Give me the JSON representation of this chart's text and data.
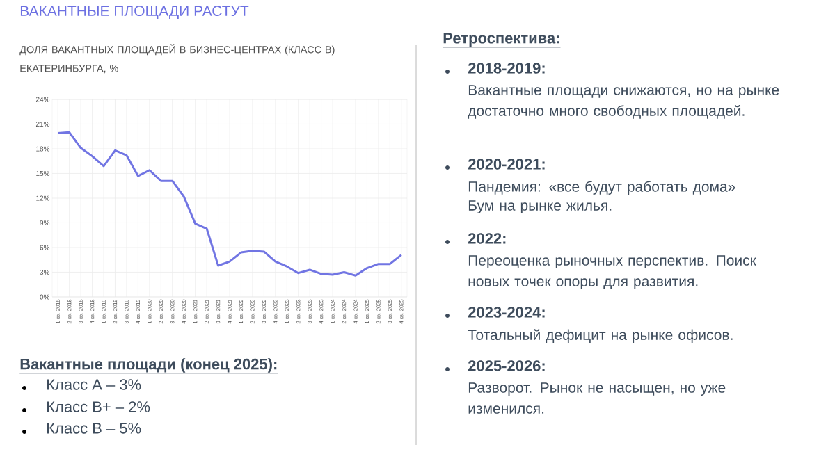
{
  "chart_data": {
    "type": "line",
    "title": "ВАКАНТНЫЕ ПЛОЩАДИ РАСТУТ",
    "subtitle": "ДОЛЯ ВАКАНТНЫХ ПЛОЩАДЕЙ В БИЗНЕС-ЦЕНТРАХ (КЛАСС В) ЕКАТЕРИНБУРГА, %",
    "categories": [
      "1 кв. 2018",
      "2 кв. 2018",
      "3 кв. 2018",
      "4 кв. 2018",
      "1 кв. 2019",
      "2 кв. 2019",
      "3 кв. 2019",
      "4 кв. 2019",
      "1 кв. 2020",
      "2 кв. 2020",
      "3 кв. 2020",
      "4 кв. 2020",
      "1 кв. 2021",
      "2 кв. 2021",
      "3 кв. 2021",
      "4 кв. 2021",
      "1 кв. 2022",
      "2 кв. 2022",
      "3 кв. 2022",
      "4 кв. 2022",
      "1 кв. 2023",
      "2 кв. 2023",
      "3 кв. 2023",
      "4 кв. 2023",
      "1 кв. 2024",
      "2 кв. 2024",
      "4 кв. 2024",
      "1 кв. 2025",
      "2 кв. 2025",
      "3 кв. 2025",
      "4 кв. 2025"
    ],
    "values": [
      19.9,
      20.0,
      18.1,
      17.1,
      15.9,
      17.8,
      17.2,
      14.7,
      15.4,
      14.1,
      14.1,
      12.2,
      8.9,
      8.3,
      3.8,
      4.3,
      5.4,
      5.6,
      5.5,
      4.3,
      3.7,
      2.9,
      3.3,
      2.8,
      2.7,
      3.0,
      2.6,
      3.5,
      4.0,
      4.0,
      5.1
    ],
    "color": "#7175e3",
    "ylim": [
      0,
      24
    ],
    "yticks": [
      {
        "value": 0,
        "label": "0%"
      },
      {
        "value": 3,
        "label": "3%"
      },
      {
        "value": 6,
        "label": "6%"
      },
      {
        "value": 9,
        "label": "9%"
      },
      {
        "value": 12,
        "label": "12%"
      },
      {
        "value": 15,
        "label": "15%"
      },
      {
        "value": 18,
        "label": "18%"
      },
      {
        "value": 21,
        "label": "21%"
      },
      {
        "value": 24,
        "label": "24%"
      }
    ],
    "grid": true,
    "annotations": [
      "Вакантные площади (конец 2025):",
      "Класс А – 3%",
      "Класс В+ – 2%",
      "Класс В – 5%",
      "Ретроспектива:",
      "2018-2019:",
      "Вакантные площади снижаются, но на рынке достаточно много свободных площадей.",
      "2020-2021:",
      "Пандемия: «все будут работать дома»",
      "Бум на рынке жилья.",
      "2022:",
      "Переоценка рыночных перспектив. Поиск новых точек опоры для развития.",
      "2023-2024:",
      "Тотальный дефицит на рынке офисов.",
      "2025-2026:",
      "Разворот. Рынок не насыщен, но уже изменился."
    ]
  }
}
